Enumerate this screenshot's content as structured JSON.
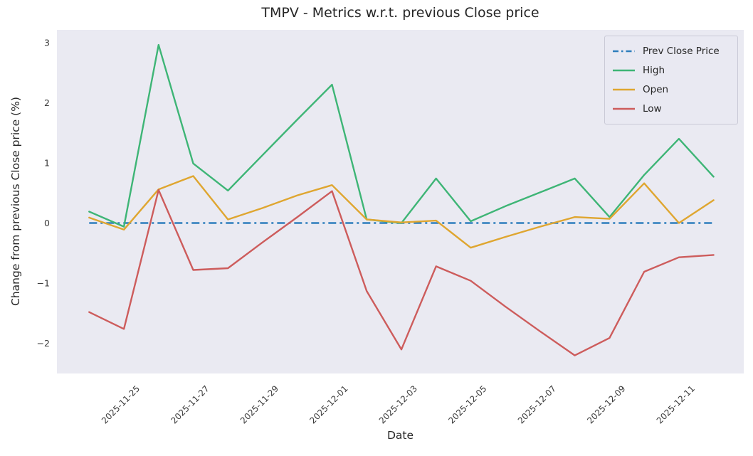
{
  "chart_data": {
    "type": "line",
    "title": "TMPV - Metrics w.r.t. previous Close price",
    "xlabel": "Date",
    "ylabel": "Change from previous Close price (%)",
    "grid": false,
    "plot_bg": "#eaeaf2",
    "fig_bg": "#ffffff",
    "legend_position": "upper right",
    "ylim": [
      -2.5,
      3.21
    ],
    "xlim_index": [
      -0.93,
      18.87
    ],
    "ytick_values": [
      -2,
      -1,
      0,
      1,
      2,
      3
    ],
    "ytick_labels": [
      "−2",
      "−1",
      "0",
      "1",
      "2",
      "3"
    ],
    "x_tick_indices": [
      1,
      3,
      5,
      7,
      9,
      11,
      13,
      15,
      17
    ],
    "x_tick_labels": [
      "2025-11-25",
      "2025-11-27",
      "2025-11-29",
      "2025-12-01",
      "2025-12-03",
      "2025-12-05",
      "2025-12-07",
      "2025-12-09",
      "2025-12-11"
    ],
    "categories": [
      "2025-11-24",
      "2025-11-25",
      "2025-11-26",
      "2025-11-27",
      "2025-11-28",
      "2025-11-29",
      "2025-11-30",
      "2025-12-01",
      "2025-12-02",
      "2025-12-03",
      "2025-12-04",
      "2025-12-05",
      "2025-12-06",
      "2025-12-07",
      "2025-12-08",
      "2025-12-09",
      "2025-12-10",
      "2025-12-11",
      "2025-12-12"
    ],
    "series": [
      {
        "name": "Prev Close Price",
        "color": "#2e7ebc",
        "style": "dashdot",
        "width": 2.6,
        "values": [
          0,
          0,
          0,
          0,
          0,
          0,
          0,
          0,
          0,
          0,
          0,
          0,
          0,
          0,
          0,
          0,
          0,
          0,
          0
        ]
      },
      {
        "name": "High",
        "color": "#3eb576",
        "style": "solid",
        "width": 2.4,
        "values": [
          0.19,
          -0.06,
          2.96,
          0.99,
          0.54,
          1.13,
          1.72,
          2.3,
          0.06,
          0.0,
          0.74,
          0.03,
          0.28,
          0.51,
          0.74,
          0.1,
          0.8,
          1.4,
          0.77
        ]
      },
      {
        "name": "Open",
        "color": "#dfa630",
        "style": "solid",
        "width": 2.4,
        "values": [
          0.09,
          -0.11,
          0.56,
          0.78,
          0.06,
          0.25,
          0.46,
          0.63,
          0.06,
          0.01,
          0.04,
          -0.41,
          -0.23,
          -0.06,
          0.1,
          0.07,
          0.66,
          0.0,
          0.38
        ]
      },
      {
        "name": "Low",
        "color": "#cd5c5c",
        "style": "solid",
        "width": 2.4,
        "values": [
          -1.48,
          -1.76,
          0.55,
          -0.78,
          -0.75,
          -0.32,
          0.1,
          0.53,
          -1.13,
          -2.1,
          -0.72,
          -0.96,
          -1.39,
          -1.8,
          -2.2,
          -1.91,
          -0.81,
          -0.57,
          -0.53
        ]
      }
    ]
  }
}
